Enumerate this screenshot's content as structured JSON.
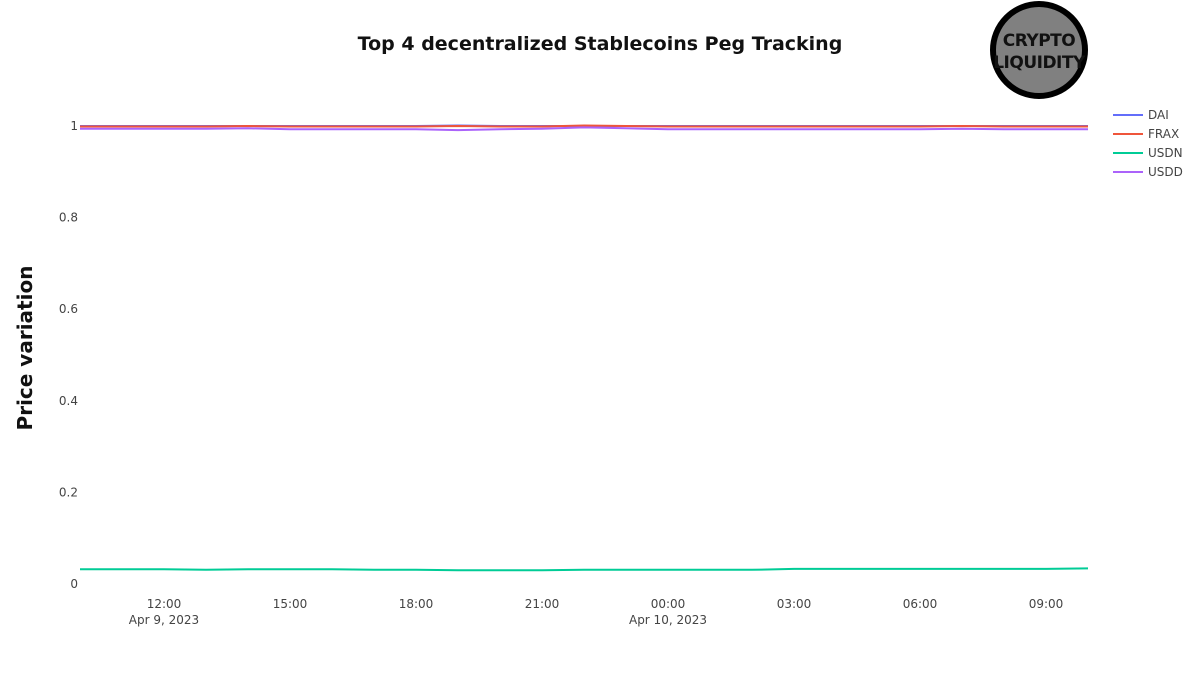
{
  "chart_data": {
    "type": "line",
    "title": "Top 4 decentralized Stablecoins Peg Tracking",
    "xlabel": "",
    "ylabel": "Price variation",
    "ylim": [
      0,
      1.0
    ],
    "y_ticks": [
      0,
      0.2,
      0.4,
      0.6,
      0.8,
      1
    ],
    "y_tick_labels": [
      "0",
      "0.2",
      "0.4",
      "0.6",
      "0.8",
      "1"
    ],
    "xlim": [
      "2023-04-09T10:00",
      "2023-04-10T10:00"
    ],
    "x_ticks": [
      {
        "t": "2023-04-09T12:00",
        "label": "12:00",
        "sublabel": "Apr 9, 2023"
      },
      {
        "t": "2023-04-09T15:00",
        "label": "15:00",
        "sublabel": ""
      },
      {
        "t": "2023-04-09T18:00",
        "label": "18:00",
        "sublabel": ""
      },
      {
        "t": "2023-04-09T21:00",
        "label": "21:00",
        "sublabel": ""
      },
      {
        "t": "2023-04-10T00:00",
        "label": "00:00",
        "sublabel": "Apr 10, 2023"
      },
      {
        "t": "2023-04-10T03:00",
        "label": "03:00",
        "sublabel": ""
      },
      {
        "t": "2023-04-10T06:00",
        "label": "06:00",
        "sublabel": ""
      },
      {
        "t": "2023-04-10T09:00",
        "label": "09:00",
        "sublabel": ""
      }
    ],
    "grid": false,
    "legend_position": "top-right",
    "x": [
      "2023-04-09T10:00",
      "2023-04-09T11:00",
      "2023-04-09T12:00",
      "2023-04-09T13:00",
      "2023-04-09T14:00",
      "2023-04-09T15:00",
      "2023-04-09T16:00",
      "2023-04-09T17:00",
      "2023-04-09T18:00",
      "2023-04-09T19:00",
      "2023-04-09T20:00",
      "2023-04-09T21:00",
      "2023-04-09T22:00",
      "2023-04-09T23:00",
      "2023-04-10T00:00",
      "2023-04-10T01:00",
      "2023-04-10T02:00",
      "2023-04-10T03:00",
      "2023-04-10T04:00",
      "2023-04-10T05:00",
      "2023-04-10T06:00",
      "2023-04-10T07:00",
      "2023-04-10T08:00",
      "2023-04-10T09:00",
      "2023-04-10T10:00"
    ],
    "series": [
      {
        "name": "DAI",
        "color": "#636efa",
        "values": [
          1.0,
          1.0,
          1.0,
          1.0,
          1.0,
          1.0,
          1.0,
          1.0,
          1.0,
          1.001,
          1.0,
          1.0,
          1.0,
          1.0,
          1.0,
          1.0,
          1.0,
          1.0,
          1.0,
          1.0,
          1.0,
          1.0,
          1.0,
          1.0,
          1.0
        ]
      },
      {
        "name": "FRAX",
        "color": "#ef553b",
        "values": [
          0.999,
          0.999,
          0.999,
          0.999,
          1.0,
          0.999,
          0.999,
          0.999,
          0.999,
          1.0,
          0.999,
          0.999,
          1.001,
          1.0,
          0.999,
          0.999,
          0.999,
          0.999,
          0.999,
          0.999,
          0.999,
          1.0,
          0.999,
          0.999,
          0.999
        ]
      },
      {
        "name": "USDN",
        "color": "#00cc96",
        "values": [
          0.032,
          0.032,
          0.032,
          0.031,
          0.032,
          0.032,
          0.032,
          0.031,
          0.031,
          0.03,
          0.03,
          0.03,
          0.031,
          0.031,
          0.031,
          0.031,
          0.031,
          0.033,
          0.033,
          0.033,
          0.033,
          0.033,
          0.033,
          0.033,
          0.034
        ]
      },
      {
        "name": "USDD",
        "color": "#ab63fa",
        "values": [
          0.994,
          0.994,
          0.994,
          0.994,
          0.995,
          0.993,
          0.993,
          0.993,
          0.993,
          0.991,
          0.993,
          0.994,
          0.997,
          0.995,
          0.993,
          0.993,
          0.993,
          0.993,
          0.993,
          0.993,
          0.993,
          0.994,
          0.993,
          0.993,
          0.993
        ]
      }
    ]
  },
  "logo": {
    "line1": "CRYPTO",
    "line2": "LIQUIDITY",
    "fill": "#808080",
    "ring": "#000000"
  },
  "colors": {
    "background": "#ffffff",
    "text": "#111111",
    "tick_text": "#444444"
  }
}
